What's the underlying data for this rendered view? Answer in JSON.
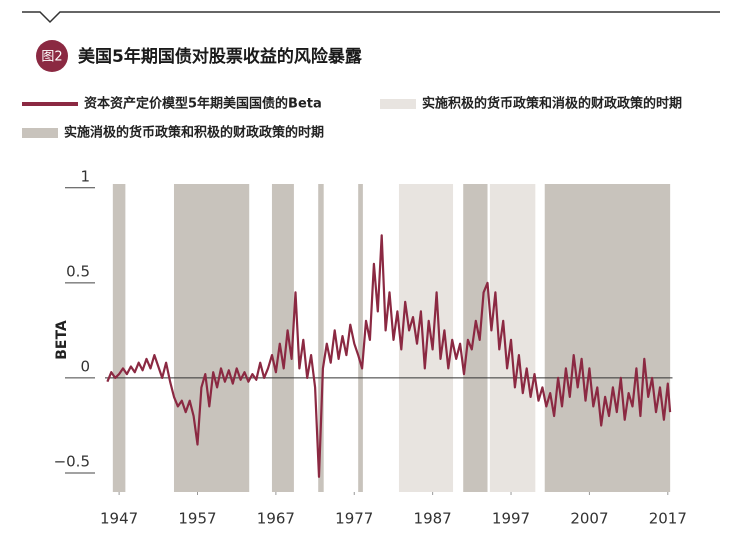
{
  "badge": "图2",
  "chart_data": {
    "type": "line",
    "title": "美国5年期国债对股票收益的风险暴露",
    "y_label": "BETA",
    "xlim": [
      1945.2,
      2017.6
    ],
    "ylim": [
      -0.6,
      1.02
    ],
    "xticks": [
      1947,
      1957,
      1967,
      1977,
      1987,
      1997,
      2007,
      2017
    ],
    "yticks": [
      1,
      0.5,
      0,
      {
        "value": -0.5,
        "label": "−0.5"
      }
    ],
    "zero_line": true,
    "band_groups": [
      {
        "name": "实施积极的货币政策和消极的财政政策的时期",
        "color": "#e8e4e0",
        "ranges": [
          [
            1982.7,
            1989.6
          ],
          [
            1994.3,
            2000.1
          ]
        ]
      },
      {
        "name": "实施消极的货币政策和积极的财政政策的时期",
        "color": "#c8c3bc",
        "ranges": [
          [
            1946.2,
            1947.8
          ],
          [
            1954.0,
            1963.6
          ],
          [
            1966.5,
            1969.3
          ],
          [
            1972.4,
            1973.1
          ],
          [
            1977.5,
            1978.1
          ],
          [
            1990.9,
            1994.0
          ],
          [
            2001.3,
            2017.3
          ]
        ]
      }
    ],
    "x": [
      1945.5,
      1946,
      1946.5,
      1947,
      1947.5,
      1948,
      1948.5,
      1949,
      1949.5,
      1950,
      1950.5,
      1951,
      1951.5,
      1952,
      1952.5,
      1953,
      1953.5,
      1954,
      1954.5,
      1955,
      1955.5,
      1956,
      1956.5,
      1957,
      1957.5,
      1958,
      1958.5,
      1959,
      1959.5,
      1960,
      1960.5,
      1961,
      1961.5,
      1962,
      1962.5,
      1963,
      1963.5,
      1964,
      1964.5,
      1965,
      1965.5,
      1966,
      1966.5,
      1967,
      1967.5,
      1968,
      1968.5,
      1969,
      1969.5,
      1970,
      1970.5,
      1971,
      1971.5,
      1972,
      1972.5,
      1973,
      1973.5,
      1974,
      1974.5,
      1975,
      1975.5,
      1976,
      1976.5,
      1977,
      1977.5,
      1978,
      1978.5,
      1979,
      1979.5,
      1980,
      1980.5,
      1981,
      1981.5,
      1982,
      1982.5,
      1983,
      1983.5,
      1984,
      1984.5,
      1985,
      1985.5,
      1986,
      1986.5,
      1987,
      1987.5,
      1988,
      1988.5,
      1989,
      1989.5,
      1990,
      1990.5,
      1991,
      1991.5,
      1992,
      1992.5,
      1993,
      1993.5,
      1994,
      1994.5,
      1995,
      1995.5,
      1996,
      1996.5,
      1997,
      1997.5,
      1998,
      1998.5,
      1999,
      1999.5,
      2000,
      2000.5,
      2001,
      2001.5,
      2002,
      2002.5,
      2003,
      2003.5,
      2004,
      2004.5,
      2005,
      2005.5,
      2006,
      2006.5,
      2007,
      2007.5,
      2008,
      2008.5,
      2009,
      2009.5,
      2010,
      2010.5,
      2011,
      2011.5,
      2012,
      2012.5,
      2013,
      2013.5,
      2014,
      2014.5,
      2015,
      2015.5,
      2016,
      2016.5,
      2017,
      2017.3
    ],
    "series": [
      {
        "name": "资本资产定价模型5年期美国国债的Beta",
        "color": "#8b2942",
        "values": [
          -0.02,
          0.03,
          0.0,
          0.02,
          0.05,
          0.02,
          0.06,
          0.03,
          0.08,
          0.04,
          0.1,
          0.05,
          0.12,
          0.06,
          0.0,
          0.08,
          -0.02,
          -0.1,
          -0.15,
          -0.12,
          -0.18,
          -0.12,
          -0.2,
          -0.35,
          -0.05,
          0.02,
          -0.15,
          0.03,
          -0.05,
          0.05,
          -0.02,
          0.04,
          -0.03,
          0.05,
          -0.01,
          0.03,
          -0.02,
          0.02,
          -0.01,
          0.08,
          0.0,
          0.05,
          0.12,
          0.03,
          0.18,
          0.05,
          0.25,
          0.1,
          0.45,
          0.05,
          0.2,
          0.0,
          0.12,
          -0.05,
          -0.52,
          0.05,
          0.18,
          0.08,
          0.25,
          0.1,
          0.22,
          0.12,
          0.28,
          0.18,
          0.12,
          0.05,
          0.3,
          0.2,
          0.6,
          0.35,
          0.75,
          0.25,
          0.45,
          0.2,
          0.35,
          0.15,
          0.4,
          0.25,
          0.32,
          0.18,
          0.35,
          0.05,
          0.3,
          0.15,
          0.45,
          0.1,
          0.25,
          0.05,
          0.2,
          0.1,
          0.18,
          0.02,
          0.2,
          0.15,
          0.3,
          0.2,
          0.45,
          0.5,
          0.25,
          0.45,
          0.15,
          0.3,
          0.05,
          0.2,
          -0.05,
          0.12,
          -0.08,
          0.05,
          -0.1,
          0.02,
          -0.12,
          -0.05,
          -0.15,
          -0.08,
          -0.2,
          0.0,
          -0.15,
          0.05,
          -0.1,
          0.12,
          -0.05,
          0.1,
          -0.12,
          0.05,
          -0.15,
          -0.05,
          -0.25,
          -0.1,
          -0.2,
          -0.05,
          -0.18,
          0.0,
          -0.22,
          -0.08,
          -0.15,
          0.05,
          -0.2,
          0.1,
          -0.1,
          0.0,
          -0.18,
          -0.05,
          -0.22,
          -0.03,
          -0.18
        ]
      }
    ]
  }
}
